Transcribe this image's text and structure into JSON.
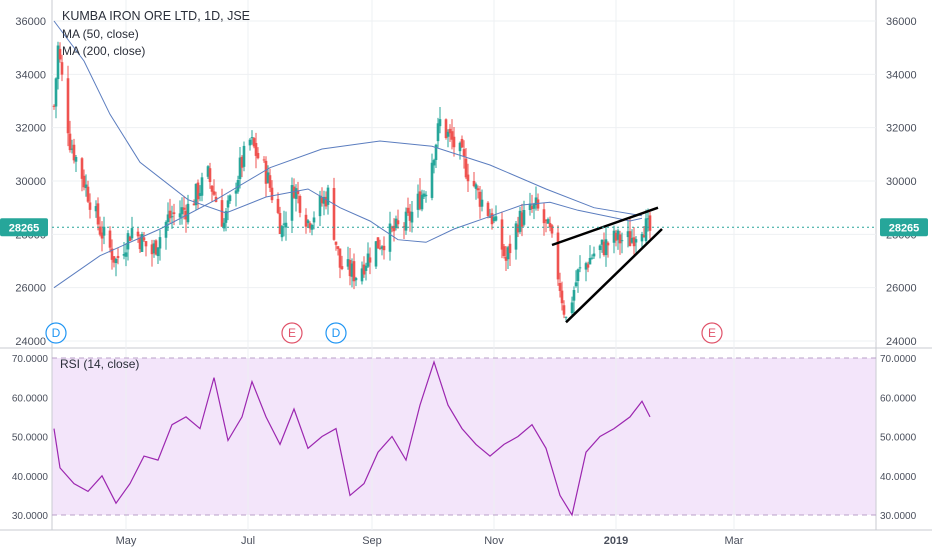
{
  "header": {
    "symbol_title": "KUMBA IRON ORE LTD, 1D, JSE",
    "ma_fast_label": "MA (50, close)",
    "ma_slow_label": "MA (200, close)"
  },
  "rsi_panel": {
    "label": "RSI (14, close)"
  },
  "price_badge": {
    "left": "28265",
    "right": "28265"
  },
  "events": [
    {
      "label": "D",
      "type": "dividend",
      "x_date": "2018-03-27"
    },
    {
      "label": "E",
      "type": "earnings",
      "x_date": "2018-07-23"
    },
    {
      "label": "D",
      "type": "dividend",
      "x_date": "2018-08-14"
    },
    {
      "label": "E",
      "type": "earnings",
      "x_date": "2019-02-18"
    }
  ],
  "colors": {
    "up_candle": "#26a69a",
    "down_candle": "#ef5350",
    "ma_fast": "#5b7dbf",
    "ma_slow": "#5b7dbf",
    "rsi_line": "#9c27b0",
    "rsi_band": "#f3e5fa",
    "price_line": "#26a69a",
    "dividend": "#2196f3",
    "earnings": "#e0536a"
  },
  "chart_data": [
    {
      "type": "candlestick",
      "title": "KUMBA IRON ORE LTD, 1D, JSE",
      "x_range": [
        "2018-03-26",
        "2019-03-29"
      ],
      "ylim": [
        24000,
        36000
      ],
      "y_ticks": [
        24000,
        26000,
        28000,
        30000,
        32000,
        34000,
        36000
      ],
      "x_ticks": [
        "May",
        "Jul",
        "Sep",
        "Nov",
        "2019",
        "Mar"
      ],
      "last_price": 28265,
      "price_path": [
        [
          "2018-03-26",
          32800
        ],
        [
          "2018-03-28",
          35000
        ],
        [
          "2018-04-03",
          31500
        ],
        [
          "2018-04-10",
          30000
        ],
        [
          "2018-04-18",
          28200
        ],
        [
          "2018-04-26",
          27000
        ],
        [
          "2018-05-04",
          28200
        ],
        [
          "2018-05-14",
          27300
        ],
        [
          "2018-05-22",
          28600
        ],
        [
          "2018-06-01",
          29000
        ],
        [
          "2018-06-11",
          30200
        ],
        [
          "2018-06-19",
          28400
        ],
        [
          "2018-06-27",
          30500
        ],
        [
          "2018-07-02",
          31500
        ],
        [
          "2018-07-10",
          30300
        ],
        [
          "2018-07-18",
          28200
        ],
        [
          "2018-07-24",
          29800
        ],
        [
          "2018-07-31",
          28500
        ],
        [
          "2018-08-10",
          29500
        ],
        [
          "2018-08-16",
          26800
        ],
        [
          "2018-08-24",
          26500
        ],
        [
          "2018-09-03",
          27600
        ],
        [
          "2018-09-10",
          28000
        ],
        [
          "2018-09-19",
          28500
        ],
        [
          "2018-09-28",
          29800
        ],
        [
          "2018-10-05",
          32200
        ],
        [
          "2018-10-15",
          31000
        ],
        [
          "2018-10-24",
          29500
        ],
        [
          "2018-11-01",
          28500
        ],
        [
          "2018-11-07",
          27000
        ],
        [
          "2018-11-13",
          28500
        ],
        [
          "2018-11-22",
          29000
        ],
        [
          "2018-11-29",
          28000
        ],
        [
          "2018-12-03",
          26500
        ],
        [
          "2018-12-07",
          24800
        ],
        [
          "2018-12-13",
          26500
        ],
        [
          "2018-12-21",
          27300
        ],
        [
          "2018-12-31",
          27800
        ],
        [
          "2019-01-08",
          27800
        ],
        [
          "2019-01-14",
          28400
        ],
        [
          "2019-01-18",
          28100
        ]
      ],
      "ma_50": [
        [
          "2018-03-26",
          36000
        ],
        [
          "2018-04-10",
          34500
        ],
        [
          "2018-04-23",
          32500
        ],
        [
          "2018-05-08",
          30700
        ],
        [
          "2018-06-01",
          29300
        ],
        [
          "2018-06-20",
          28800
        ],
        [
          "2018-07-10",
          29400
        ],
        [
          "2018-07-31",
          29700
        ],
        [
          "2018-08-16",
          29000
        ],
        [
          "2018-08-31",
          28500
        ],
        [
          "2018-09-14",
          27800
        ],
        [
          "2018-09-28",
          27700
        ],
        [
          "2018-10-12",
          28200
        ],
        [
          "2018-10-31",
          28700
        ],
        [
          "2018-11-15",
          29100
        ],
        [
          "2018-11-29",
          29200
        ],
        [
          "2018-12-13",
          28900
        ],
        [
          "2019-01-08",
          28500
        ],
        [
          "2019-01-14",
          28600
        ]
      ],
      "ma_200": [
        [
          "2018-03-26",
          26000
        ],
        [
          "2018-04-18",
          27200
        ],
        [
          "2018-05-18",
          28200
        ],
        [
          "2018-06-15",
          29300
        ],
        [
          "2018-07-12",
          30500
        ],
        [
          "2018-08-07",
          31200
        ],
        [
          "2018-09-05",
          31500
        ],
        [
          "2018-10-01",
          31300
        ],
        [
          "2018-10-30",
          30600
        ],
        [
          "2018-11-27",
          29700
        ],
        [
          "2018-12-21",
          29000
        ],
        [
          "2019-01-14",
          28700
        ]
      ],
      "trendlines": [
        {
          "name": "upper",
          "from": [
            "2018-11-30",
            27600
          ],
          "to": [
            "2019-01-22",
            29000
          ]
        },
        {
          "name": "lower",
          "from": [
            "2018-12-07",
            24700
          ],
          "to": [
            "2019-01-24",
            28200
          ]
        }
      ]
    },
    {
      "type": "line",
      "title": "RSI (14, close)",
      "ylim": [
        30,
        70
      ],
      "y_ticks": [
        30,
        40,
        50,
        60,
        70
      ],
      "band": [
        30,
        70
      ],
      "rsi": [
        [
          "2018-03-26",
          52
        ],
        [
          "2018-03-29",
          42
        ],
        [
          "2018-04-05",
          38
        ],
        [
          "2018-04-12",
          36
        ],
        [
          "2018-04-19",
          40
        ],
        [
          "2018-04-26",
          33
        ],
        [
          "2018-05-03",
          38
        ],
        [
          "2018-05-10",
          45
        ],
        [
          "2018-05-17",
          44
        ],
        [
          "2018-05-24",
          53
        ],
        [
          "2018-05-31",
          55
        ],
        [
          "2018-06-07",
          52
        ],
        [
          "2018-06-14",
          65
        ],
        [
          "2018-06-21",
          49
        ],
        [
          "2018-06-28",
          55
        ],
        [
          "2018-07-03",
          64
        ],
        [
          "2018-07-10",
          55
        ],
        [
          "2018-07-17",
          48
        ],
        [
          "2018-07-24",
          57
        ],
        [
          "2018-07-31",
          47
        ],
        [
          "2018-08-07",
          50
        ],
        [
          "2018-08-14",
          52
        ],
        [
          "2018-08-21",
          35
        ],
        [
          "2018-08-28",
          38
        ],
        [
          "2018-09-04",
          46
        ],
        [
          "2018-09-11",
          50
        ],
        [
          "2018-09-18",
          44
        ],
        [
          "2018-09-25",
          58
        ],
        [
          "2018-10-02",
          69
        ],
        [
          "2018-10-09",
          58
        ],
        [
          "2018-10-16",
          52
        ],
        [
          "2018-10-23",
          48
        ],
        [
          "2018-10-30",
          45
        ],
        [
          "2018-11-06",
          48
        ],
        [
          "2018-11-13",
          50
        ],
        [
          "2018-11-20",
          53
        ],
        [
          "2018-11-27",
          47
        ],
        [
          "2018-12-04",
          35
        ],
        [
          "2018-12-10",
          30
        ],
        [
          "2018-12-17",
          46
        ],
        [
          "2018-12-24",
          50
        ],
        [
          "2018-12-31",
          52
        ],
        [
          "2019-01-08",
          55
        ],
        [
          "2019-01-14",
          59
        ],
        [
          "2019-01-18",
          55
        ]
      ]
    }
  ]
}
